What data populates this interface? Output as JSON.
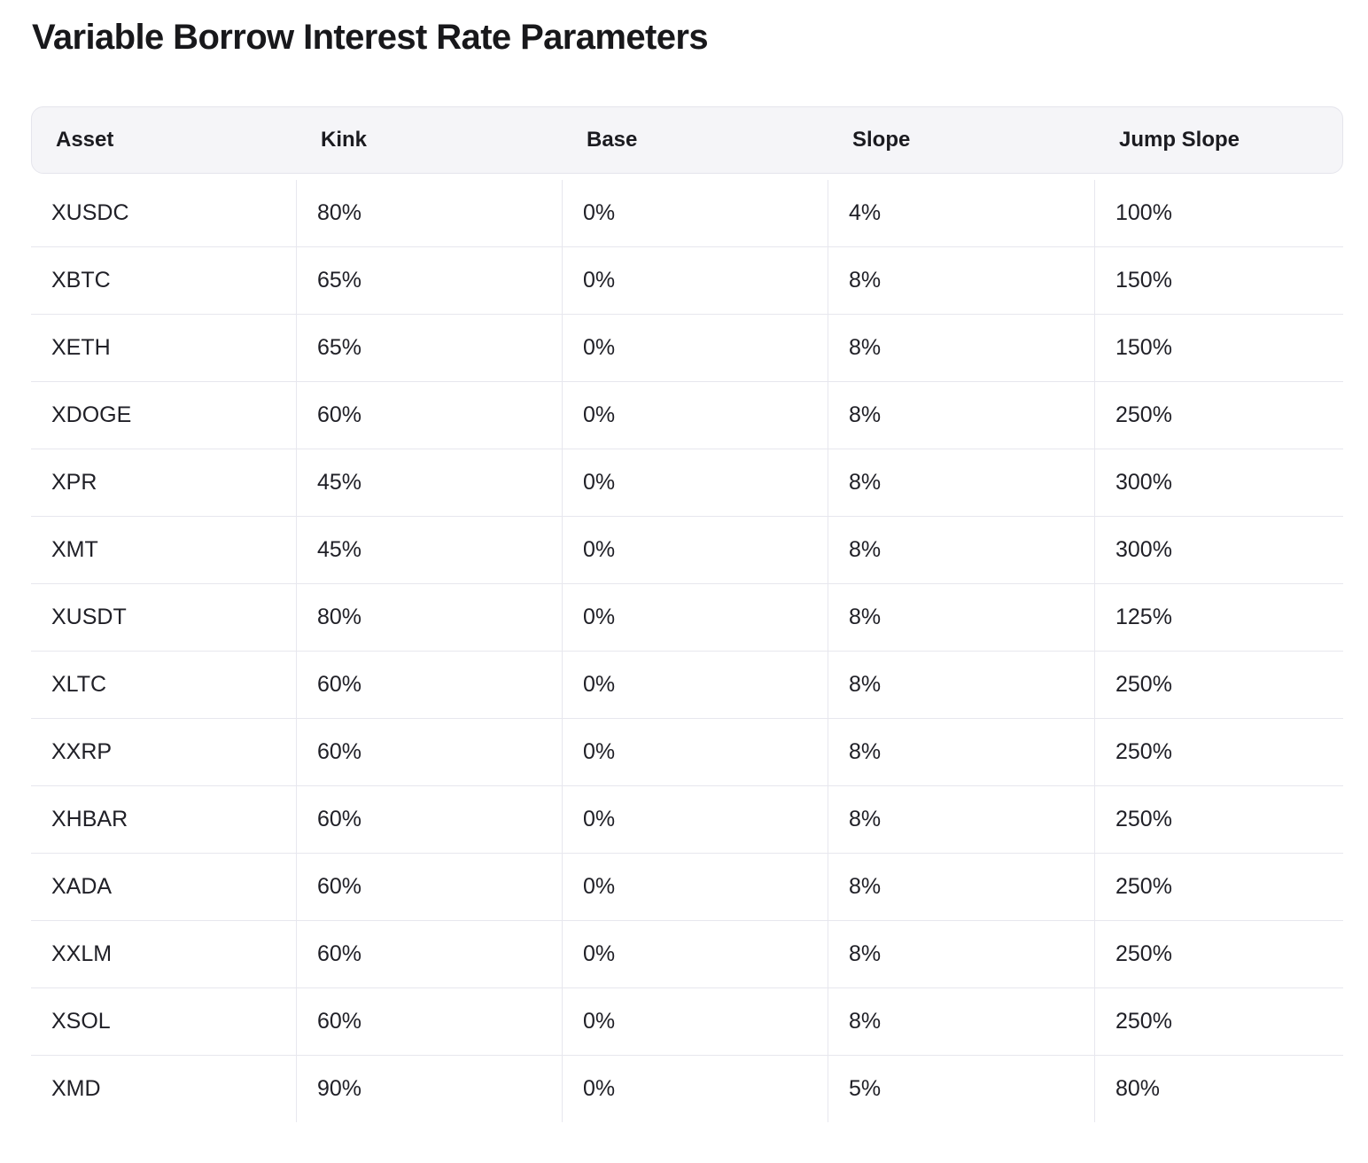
{
  "page": {
    "title": "Variable Borrow Interest Rate Parameters"
  },
  "colors": {
    "header_bg": "#f5f5f8",
    "header_border": "#e5e5ec",
    "row_border": "#e7e7ee",
    "title_text": "#18181b",
    "body_text": "#202027"
  },
  "table": {
    "columns": [
      {
        "key": "asset",
        "label": "Asset"
      },
      {
        "key": "kink",
        "label": "Kink"
      },
      {
        "key": "base",
        "label": "Base"
      },
      {
        "key": "slope",
        "label": "Slope"
      },
      {
        "key": "jump_slope",
        "label": "Jump Slope"
      }
    ],
    "rows": [
      {
        "asset": "XUSDC",
        "kink": "80%",
        "base": "0%",
        "slope": "4%",
        "jump_slope": "100%"
      },
      {
        "asset": "XBTC",
        "kink": "65%",
        "base": "0%",
        "slope": "8%",
        "jump_slope": "150%"
      },
      {
        "asset": "XETH",
        "kink": "65%",
        "base": "0%",
        "slope": "8%",
        "jump_slope": "150%"
      },
      {
        "asset": "XDOGE",
        "kink": "60%",
        "base": "0%",
        "slope": "8%",
        "jump_slope": "250%"
      },
      {
        "asset": "XPR",
        "kink": "45%",
        "base": "0%",
        "slope": "8%",
        "jump_slope": "300%"
      },
      {
        "asset": "XMT",
        "kink": "45%",
        "base": "0%",
        "slope": "8%",
        "jump_slope": "300%"
      },
      {
        "asset": "XUSDT",
        "kink": "80%",
        "base": "0%",
        "slope": "8%",
        "jump_slope": "125%"
      },
      {
        "asset": "XLTC",
        "kink": "60%",
        "base": "0%",
        "slope": "8%",
        "jump_slope": "250%"
      },
      {
        "asset": "XXRP",
        "kink": "60%",
        "base": "0%",
        "slope": "8%",
        "jump_slope": "250%"
      },
      {
        "asset": "XHBAR",
        "kink": "60%",
        "base": "0%",
        "slope": "8%",
        "jump_slope": "250%"
      },
      {
        "asset": "XADA",
        "kink": "60%",
        "base": "0%",
        "slope": "8%",
        "jump_slope": "250%"
      },
      {
        "asset": "XXLM",
        "kink": "60%",
        "base": "0%",
        "slope": "8%",
        "jump_slope": "250%"
      },
      {
        "asset": "XSOL",
        "kink": "60%",
        "base": "0%",
        "slope": "8%",
        "jump_slope": "250%"
      },
      {
        "asset": "XMD",
        "kink": "90%",
        "base": "0%",
        "slope": "5%",
        "jump_slope": "80%"
      }
    ]
  }
}
